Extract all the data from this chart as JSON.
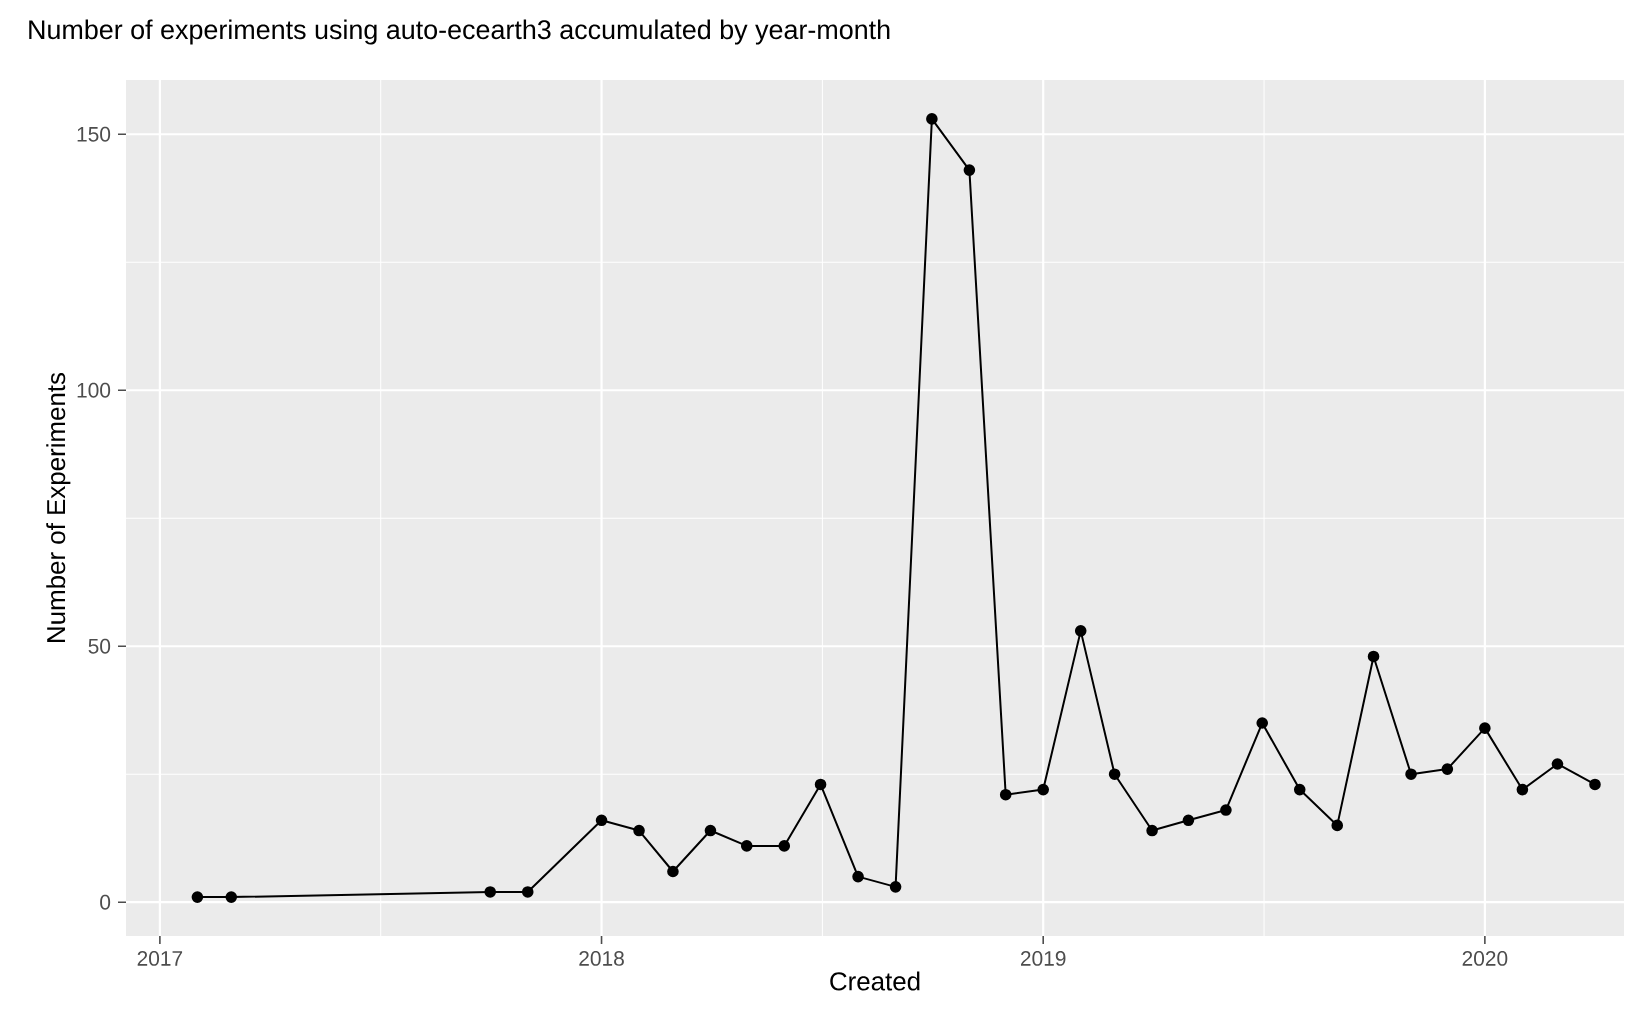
{
  "chart_data": {
    "type": "line",
    "title": "Number of experiments using auto-ecearth3 accumulated by year-month",
    "xlabel": "Created",
    "ylabel": "Number of Experiments",
    "x": [
      "2017-02",
      "2017-03",
      "2017-10",
      "2017-11",
      "2018-01",
      "2018-02",
      "2018-03",
      "2018-04",
      "2018-05",
      "2018-06",
      "2018-07",
      "2018-08",
      "2018-09",
      "2018-10",
      "2018-11",
      "2018-12",
      "2019-01",
      "2019-02",
      "2019-03",
      "2019-04",
      "2019-05",
      "2019-06",
      "2019-07",
      "2019-08",
      "2019-09",
      "2019-10",
      "2019-11",
      "2019-12",
      "2020-01",
      "2020-02",
      "2020-03",
      "2020-04"
    ],
    "values": [
      1,
      1,
      2,
      2,
      16,
      14,
      6,
      14,
      11,
      11,
      23,
      5,
      3,
      153,
      143,
      21,
      22,
      53,
      25,
      14,
      16,
      18,
      35,
      22,
      15,
      48,
      25,
      26,
      34,
      22,
      27,
      23
    ],
    "color": "#000000",
    "marker": "circle",
    "line_style": "solid",
    "grid": true,
    "xlim": [
      "2016-12-04",
      "2020-04-25"
    ],
    "xticks": [
      "2017",
      "2018",
      "2019",
      "2020"
    ],
    "ylim": [
      -6.6,
      160.6
    ],
    "yticks": [
      0,
      50,
      100,
      150
    ]
  }
}
